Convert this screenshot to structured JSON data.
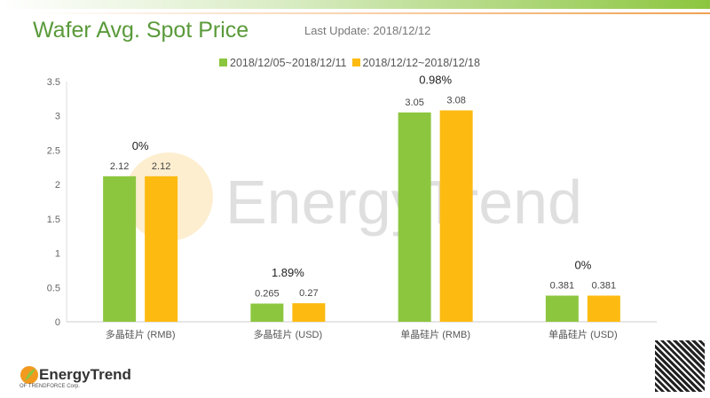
{
  "header": {
    "title": "Wafer Avg. Spot Price",
    "last_update": "Last Update: 2018/12/12"
  },
  "watermark": "EnergyTrend",
  "footer": {
    "logo_name": "EnergyTrend",
    "logo_sub": "OF TRENDFORCE Corp."
  },
  "colors": {
    "series1": "#8cc63f",
    "series2": "#fdbb11",
    "title": "#5a9a3a"
  },
  "chart_data": {
    "type": "bar",
    "categories": [
      "多晶硅片 (RMB)",
      "多晶硅片 (USD)",
      "单晶硅片 (RMB)",
      "单晶硅片 (USD)"
    ],
    "series": [
      {
        "name": "2018/12/05~2018/12/11",
        "values": [
          2.12,
          0.265,
          3.05,
          0.381
        ]
      },
      {
        "name": "2018/12/12~2018/12/18",
        "values": [
          2.12,
          0.27,
          3.08,
          0.381
        ]
      }
    ],
    "data_labels": [
      [
        "2.12",
        "0.265",
        "3.05",
        "0.381"
      ],
      [
        "2.12",
        "0.27",
        "3.08",
        "0.381"
      ]
    ],
    "annotations": [
      "0%",
      "1.89%",
      "0.98%",
      "0%"
    ],
    "yticks": [
      "0",
      "0.5",
      "1",
      "1.5",
      "2",
      "2.5",
      "3",
      "3.5"
    ],
    "ylim": [
      0,
      3.5
    ],
    "legend": "top",
    "grid": false
  }
}
